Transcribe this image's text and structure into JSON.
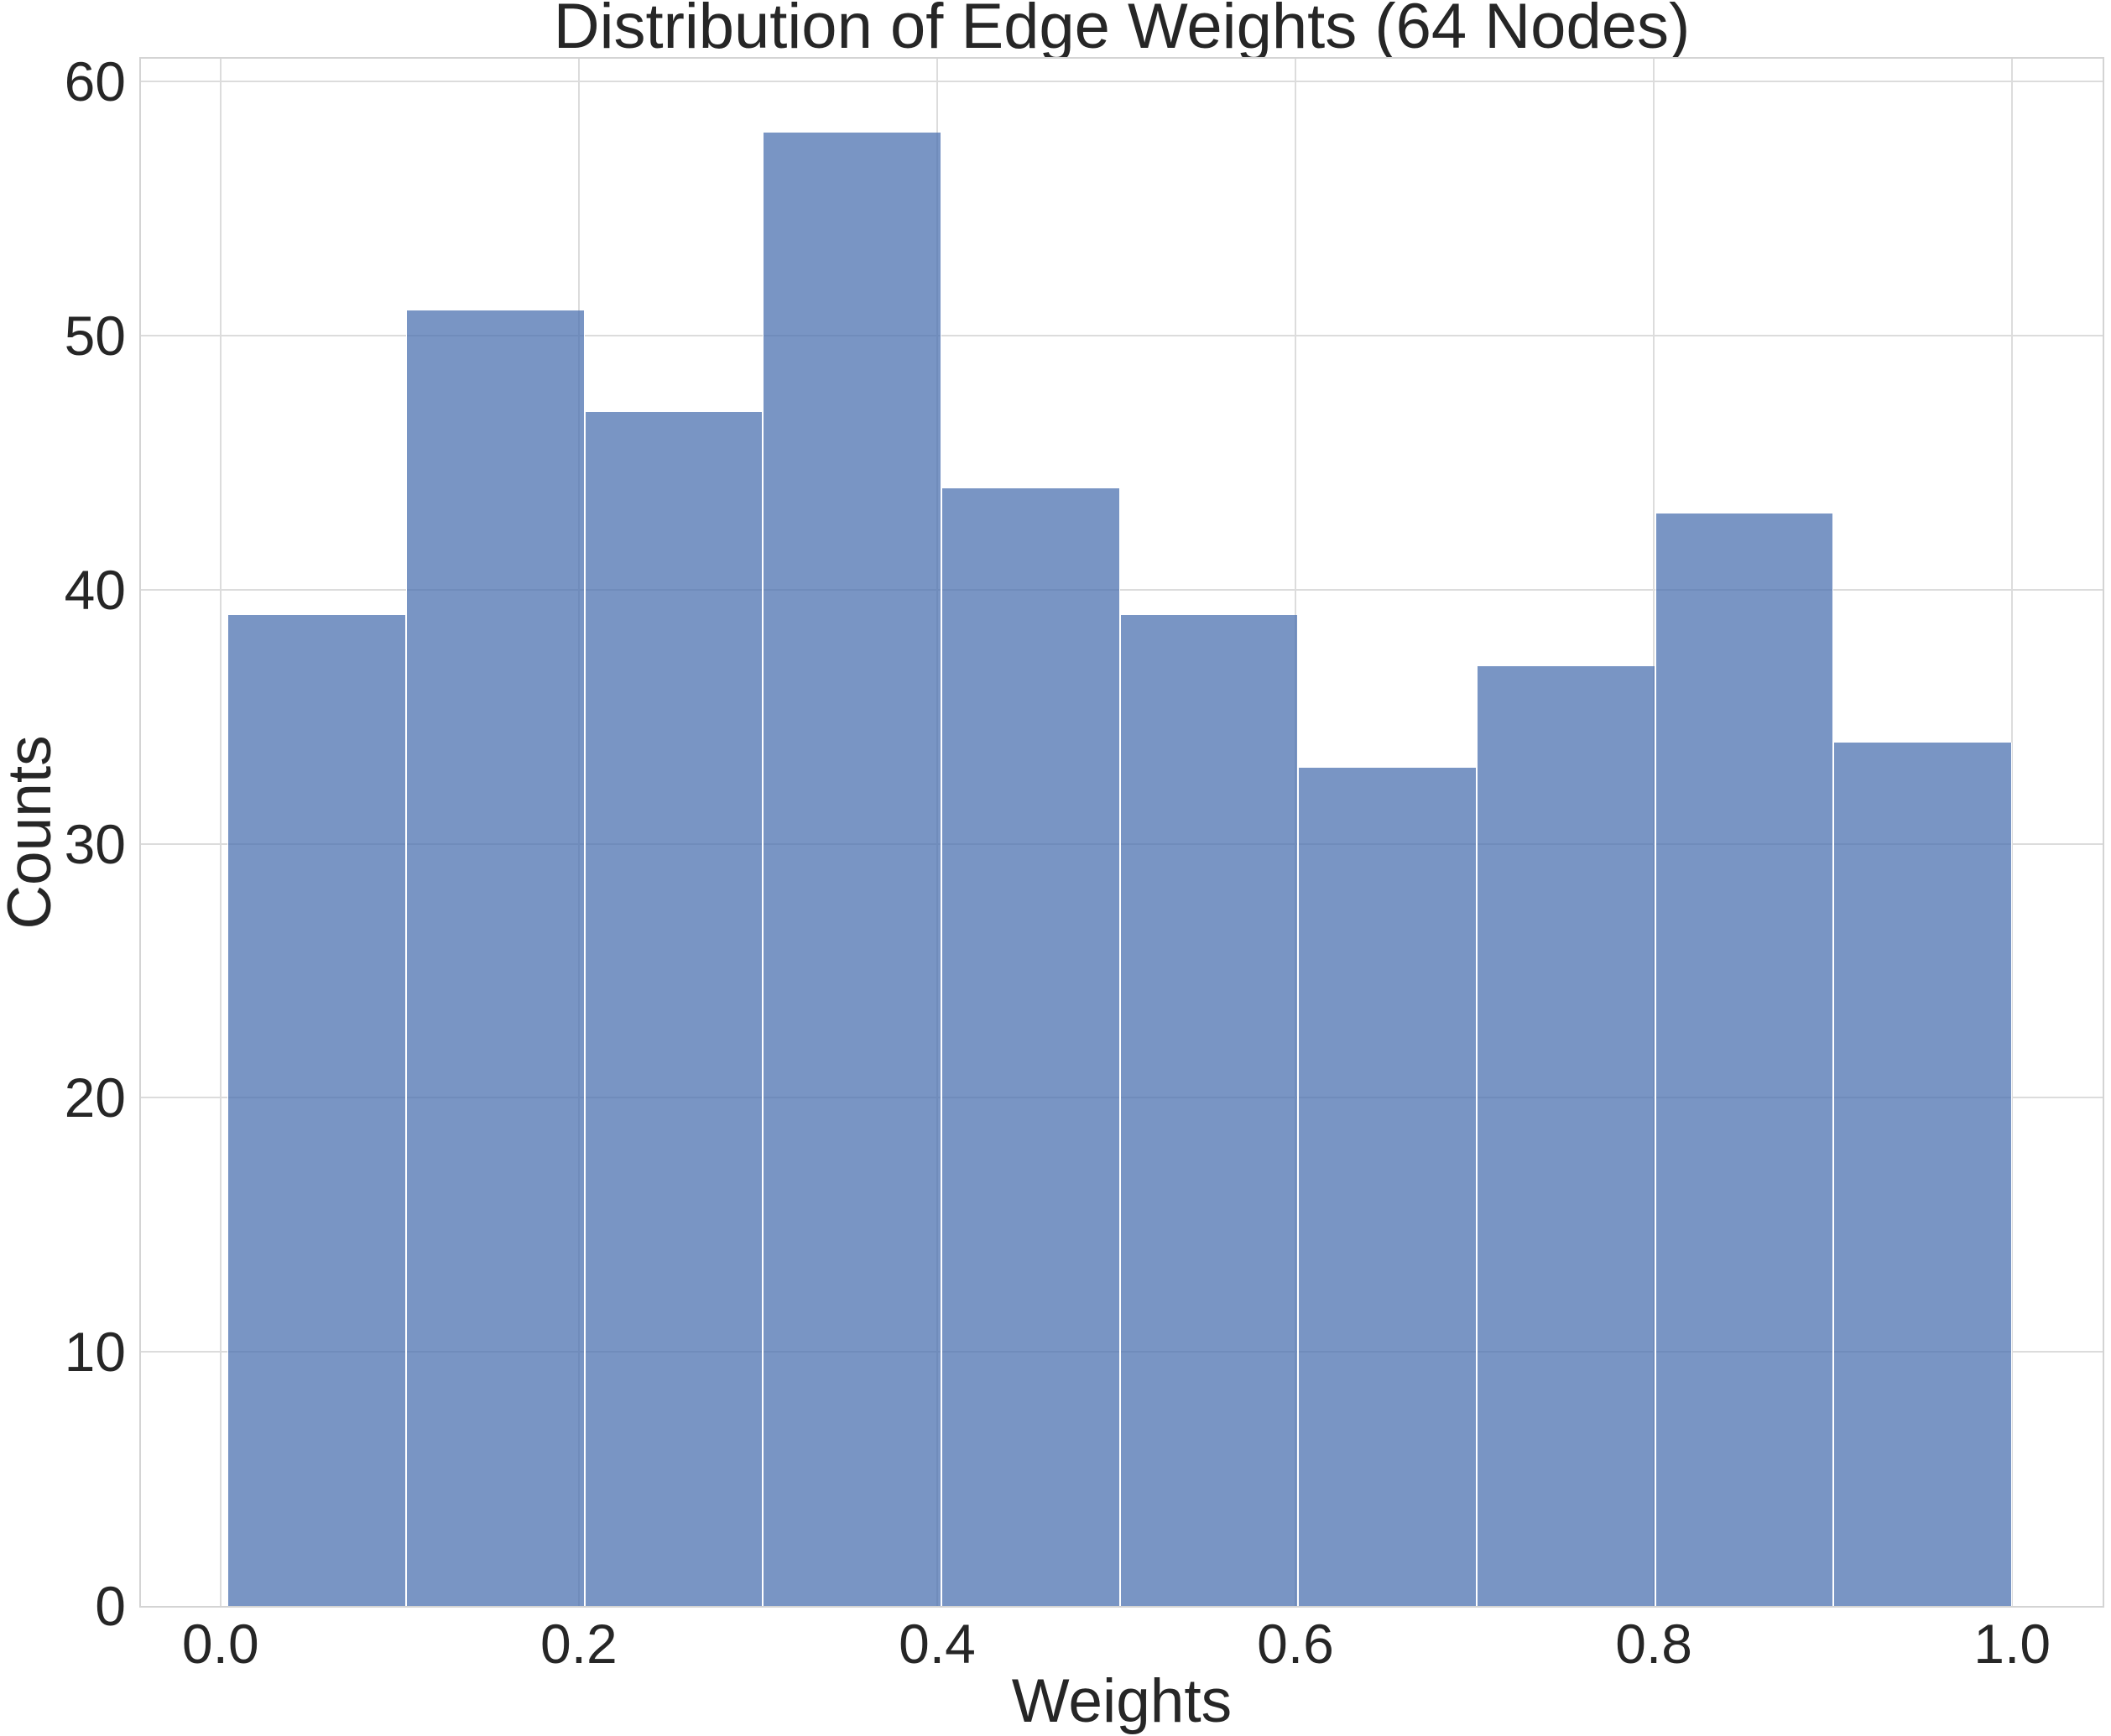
{
  "figure": {
    "background": "#ffffff"
  },
  "chart_data": {
    "type": "bar",
    "subtype": "histogram",
    "title": "Distribution of Edge Weights (64 Nodes)",
    "xlabel": "Weights",
    "ylabel": "Counts",
    "bin_edges": [
      0.004,
      0.1036,
      0.2032,
      0.3028,
      0.4024,
      0.502,
      0.6016,
      0.7012,
      0.8008,
      0.9004,
      1.0
    ],
    "counts": [
      39,
      51,
      47,
      58,
      44,
      39,
      33,
      37,
      43,
      34
    ],
    "xlim": [
      -0.0444,
      1.0505
    ],
    "ylim": [
      0,
      60.9
    ],
    "x_ticks": {
      "values": [
        0.0,
        0.2,
        0.4,
        0.6,
        0.8,
        1.0
      ],
      "labels": [
        "0.0",
        "0.2",
        "0.4",
        "0.6",
        "0.8",
        "1.0"
      ]
    },
    "y_ticks": {
      "values": [
        0,
        10,
        20,
        30,
        40,
        50,
        60
      ],
      "labels": [
        "0",
        "10",
        "20",
        "30",
        "40",
        "50",
        "60"
      ]
    },
    "grid": true,
    "legend_position": "none",
    "colors": {
      "bar_fill": "#4C72B0",
      "bar_alpha": 0.75,
      "bar_edge": "#ffffff",
      "grid": "#dcdcdc",
      "spine": "#d4d4d4",
      "text": "#262626",
      "background": "#ffffff"
    }
  }
}
